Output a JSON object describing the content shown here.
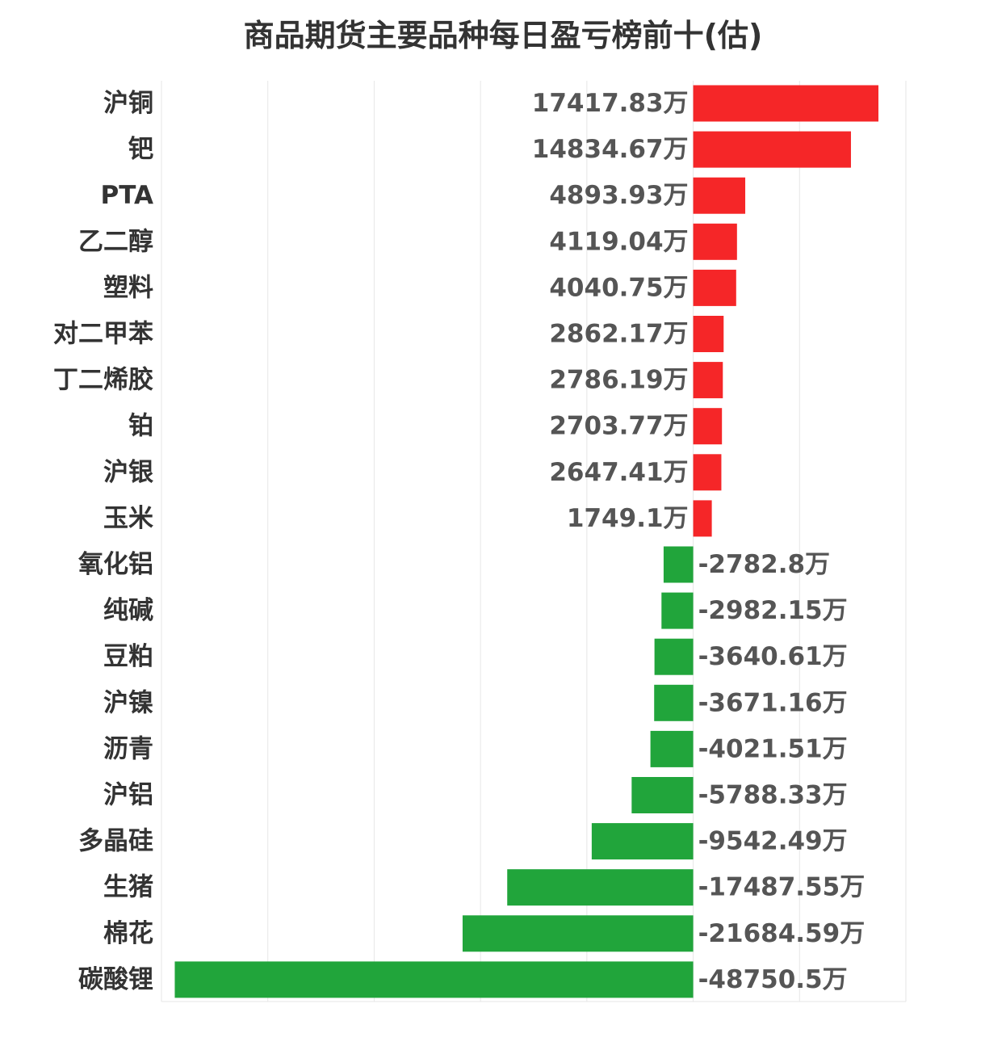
{
  "chart_data": {
    "type": "bar",
    "orientation": "horizontal",
    "title": "商品期货主要品种每日盈亏榜前十(估)",
    "unit": "万",
    "categories": [
      "沪铜",
      "钯",
      "PTA",
      "乙二醇",
      "塑料",
      "对二甲苯",
      "丁二烯胶",
      "铂",
      "沪银",
      "玉米",
      "氧化铝",
      "纯碱",
      "豆粕",
      "沪镍",
      "沥青",
      "沪铝",
      "多晶硅",
      "生猪",
      "棉花",
      "碳酸锂"
    ],
    "values": [
      17417.83,
      14834.67,
      4893.93,
      4119.04,
      4040.75,
      2862.17,
      2786.19,
      2703.77,
      2647.41,
      1749.1,
      -2782.8,
      -2982.15,
      -3640.61,
      -3671.16,
      -4021.51,
      -5788.33,
      -9542.49,
      -17487.55,
      -21684.59,
      -48750.5
    ],
    "value_labels": [
      "17417.83万",
      "14834.67万",
      "4893.93万",
      "4119.04万",
      "4040.75万",
      "2862.17万",
      "2786.19万",
      "2703.77万",
      "2647.41万",
      "1749.1万",
      "-2782.8万",
      "-2982.15万",
      "-3640.61万",
      "-3671.16万",
      "-4021.51万",
      "-5788.33万",
      "-9542.49万",
      "-17487.55万",
      "-21684.59万",
      "-48750.5万"
    ],
    "xlim": [
      -50000,
      20000
    ],
    "grid": true,
    "legend": false,
    "colors": {
      "positive": "#f52628",
      "negative": "#21a53b",
      "grid": "#e6e6e6",
      "category_text": "#333333",
      "value_text": "#555555"
    }
  }
}
